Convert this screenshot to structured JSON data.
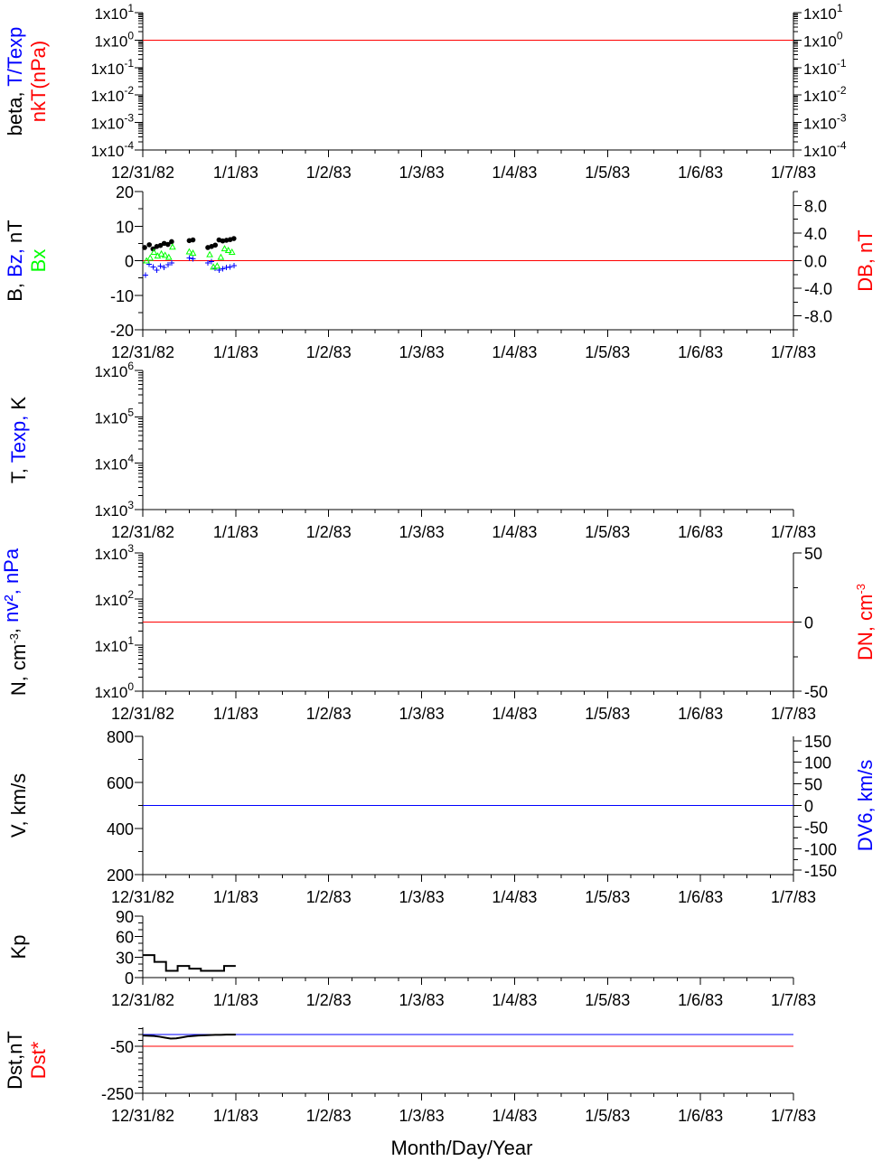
{
  "colors": {
    "axis": "#000000",
    "red": "#ff0000",
    "blue": "#0000ff",
    "green": "#00ff00",
    "black": "#000000"
  },
  "x_axis": {
    "tick_labels": [
      "12/31/82",
      "1/1/83",
      "1/2/83",
      "1/3/83",
      "1/4/83",
      "1/5/83",
      "1/6/83",
      "1/7/83"
    ],
    "range_days": [
      0,
      7
    ],
    "title": "Month/Day/Year"
  },
  "chart_data": [
    {
      "id": "beta",
      "type": "line",
      "ylabel_left": [
        {
          "text": "beta, ",
          "color": "black"
        },
        {
          "text": "T/Texp",
          "color": "blue"
        }
      ],
      "ylabel_left2": [
        {
          "text": "nkT(nPa)",
          "color": "red"
        }
      ],
      "y_scale": "log",
      "ylim": [
        0.0001,
        10
      ],
      "y_tick_labels": [
        {
          "mant": "1x10",
          "exp": "1",
          "value": 10
        },
        {
          "mant": "1x10",
          "exp": "0",
          "value": 1
        },
        {
          "mant": "1x10",
          "exp": "-1",
          "value": 0.1
        },
        {
          "mant": "1x10",
          "exp": "-2",
          "value": 0.01
        },
        {
          "mant": "1x10",
          "exp": "-3",
          "value": 0.001
        },
        {
          "mant": "1x10",
          "exp": "-4",
          "value": 0.0001
        }
      ],
      "right_axis": {
        "y_scale": "log",
        "ylim": [
          0.0001,
          10
        ],
        "tick_labels": [
          {
            "mant": "1x10",
            "exp": "1",
            "value": 10
          },
          {
            "mant": "1x10",
            "exp": "0",
            "value": 1
          },
          {
            "mant": "1x10",
            "exp": "-1",
            "value": 0.1
          },
          {
            "mant": "1x10",
            "exp": "-2",
            "value": 0.01
          },
          {
            "mant": "1x10",
            "exp": "-3",
            "value": 0.001
          },
          {
            "mant": "1x10",
            "exp": "-4",
            "value": 0.0001
          }
        ]
      },
      "ref_lines": [
        {
          "y": 1,
          "color": "red"
        }
      ],
      "series": []
    },
    {
      "id": "bfield",
      "type": "scatter",
      "ylabel_left": [
        {
          "text": "B, ",
          "color": "black"
        },
        {
          "text": "Bz, ",
          "color": "blue"
        },
        {
          "text": "nT",
          "color": "black"
        }
      ],
      "ylabel_left2": [
        {
          "text": "Bx",
          "color": "green"
        }
      ],
      "y_scale": "linear",
      "ylim": [
        -20,
        20
      ],
      "y_tick_labels": [
        "20",
        "10",
        "0",
        "-10",
        "-20"
      ],
      "right_axis": {
        "label": "DB, nT",
        "label_color": "red",
        "ylim": [
          -10,
          10
        ],
        "tick_labels": [
          "8.0",
          "4.0",
          "0.0",
          "-4.0",
          "-8.0"
        ]
      },
      "ref_lines": [
        {
          "y": 0,
          "color": "red"
        }
      ],
      "series": [
        {
          "color": "black",
          "marker": "dot",
          "x": [
            0.02,
            0.07,
            0.11,
            0.15,
            0.19,
            0.23,
            0.27,
            0.31,
            0.5,
            0.54,
            0.7,
            0.74,
            0.78,
            0.82,
            0.86,
            0.9,
            0.94,
            0.98
          ],
          "y": [
            3.8,
            4.6,
            3.4,
            4.1,
            4.4,
            5.0,
            4.7,
            5.5,
            5.8,
            6.0,
            3.8,
            4.1,
            4.5,
            6.0,
            5.7,
            5.9,
            6.1,
            6.4
          ]
        },
        {
          "color": "blue",
          "marker": "plus",
          "x": [
            0.03,
            0.07,
            0.11,
            0.15,
            0.19,
            0.23,
            0.27,
            0.31,
            0.5,
            0.54,
            0.7,
            0.74,
            0.78,
            0.82,
            0.86,
            0.9,
            0.94,
            0.98
          ],
          "y": [
            -4.2,
            -1.0,
            -1.8,
            -2.8,
            -1.6,
            -2.0,
            -1.2,
            -0.6,
            0.8,
            0.5,
            -0.6,
            -0.3,
            -2.2,
            -2.8,
            -2.4,
            -2.0,
            -1.8,
            -1.4
          ]
        },
        {
          "color": "green",
          "marker": "triangle",
          "x": [
            0.04,
            0.08,
            0.12,
            0.16,
            0.2,
            0.24,
            0.28,
            0.32,
            0.5,
            0.54,
            0.72,
            0.76,
            0.8,
            0.84,
            0.88,
            0.92,
            0.96
          ],
          "y": [
            0.0,
            0.8,
            2.5,
            1.4,
            2.0,
            1.6,
            1.0,
            4.0,
            2.6,
            2.2,
            1.8,
            -1.8,
            -1.5,
            1.0,
            3.5,
            3.0,
            2.5
          ]
        }
      ]
    },
    {
      "id": "temperature",
      "type": "line",
      "ylabel_left": [
        {
          "text": "T, ",
          "color": "black"
        },
        {
          "text": "Texp, ",
          "color": "blue"
        },
        {
          "text": "K",
          "color": "black"
        }
      ],
      "y_scale": "log",
      "ylim": [
        1000,
        1000000
      ],
      "y_tick_labels": [
        {
          "mant": "1x10",
          "exp": "6",
          "value": 1000000
        },
        {
          "mant": "1x10",
          "exp": "5",
          "value": 100000
        },
        {
          "mant": "1x10",
          "exp": "4",
          "value": 10000
        },
        {
          "mant": "1x10",
          "exp": "3",
          "value": 1000
        }
      ],
      "series": []
    },
    {
      "id": "density",
      "type": "line",
      "ylabel_left": [
        {
          "text": "N, cm",
          "color": "black"
        },
        {
          "text": "-3",
          "color": "black",
          "sup": true
        },
        {
          "text": ", ",
          "color": "black"
        },
        {
          "text": "nv², nPa",
          "color": "blue"
        }
      ],
      "y_scale": "log",
      "ylim": [
        1,
        1000
      ],
      "y_tick_labels": [
        {
          "mant": "1x10",
          "exp": "3",
          "value": 1000
        },
        {
          "mant": "1x10",
          "exp": "2",
          "value": 100
        },
        {
          "mant": "1x10",
          "exp": "1",
          "value": 10
        },
        {
          "mant": "1x10",
          "exp": "0",
          "value": 1
        }
      ],
      "right_axis": {
        "label": "DN, cm",
        "label_sup": "-3",
        "label_color": "red",
        "ylim": [
          -50,
          50
        ],
        "tick_labels": [
          "50",
          "0",
          "-50"
        ]
      },
      "ref_lines": [
        {
          "right_y": 0,
          "color": "red"
        }
      ],
      "series": []
    },
    {
      "id": "velocity",
      "type": "line",
      "ylabel_left": [
        {
          "text": "V, km/s",
          "color": "black"
        }
      ],
      "y_scale": "linear",
      "ylim": [
        200,
        800
      ],
      "y_tick_labels": [
        "800",
        "600",
        "400",
        "200"
      ],
      "right_axis": {
        "label": "DV6, km/s",
        "label_color": "blue",
        "ylim": [
          -160,
          160
        ],
        "tick_labels": [
          "150",
          "100",
          "50",
          "0",
          "-50",
          "-100",
          "-150"
        ]
      },
      "ref_lines": [
        {
          "right_y": 0,
          "color": "blue"
        }
      ],
      "series": []
    },
    {
      "id": "kp",
      "type": "line",
      "ylabel_left": [
        {
          "text": "Kp",
          "color": "black"
        }
      ],
      "y_scale": "linear",
      "ylim": [
        0,
        90
      ],
      "y_tick_labels": [
        "90",
        "60",
        "30",
        "0"
      ],
      "series": [
        {
          "color": "black",
          "step": true,
          "x": [
            0,
            0.125,
            0.25,
            0.375,
            0.5,
            0.625,
            0.75,
            0.875,
            1.0
          ],
          "y": [
            33,
            23,
            10,
            17,
            13,
            10,
            10,
            17,
            17
          ]
        }
      ]
    },
    {
      "id": "dst",
      "type": "line",
      "ylabel_left": [
        {
          "text": "Dst,nT",
          "color": "black"
        }
      ],
      "ylabel_left2": [
        {
          "text": "Dst*",
          "color": "red"
        }
      ],
      "y_scale": "linear",
      "ylim": [
        -250,
        30
      ],
      "y_tick_labels": [
        "-50",
        "-250"
      ],
      "y_tick_values": [
        -50,
        -250
      ],
      "ref_lines": [
        {
          "y": 0,
          "color": "blue"
        },
        {
          "y": -50,
          "color": "red"
        }
      ],
      "series": [
        {
          "color": "black",
          "x": [
            0,
            0.06,
            0.12,
            0.18,
            0.24,
            0.3,
            0.36,
            0.42,
            0.48,
            0.54,
            0.6,
            0.66,
            0.72,
            0.78,
            0.84,
            0.9,
            0.96,
            1.0
          ],
          "y": [
            -5,
            -6,
            -7,
            -10,
            -14,
            -18,
            -17,
            -13,
            -9,
            -7,
            -5,
            -4,
            -3,
            -2,
            -2,
            -1,
            -1,
            -1
          ]
        }
      ]
    }
  ]
}
